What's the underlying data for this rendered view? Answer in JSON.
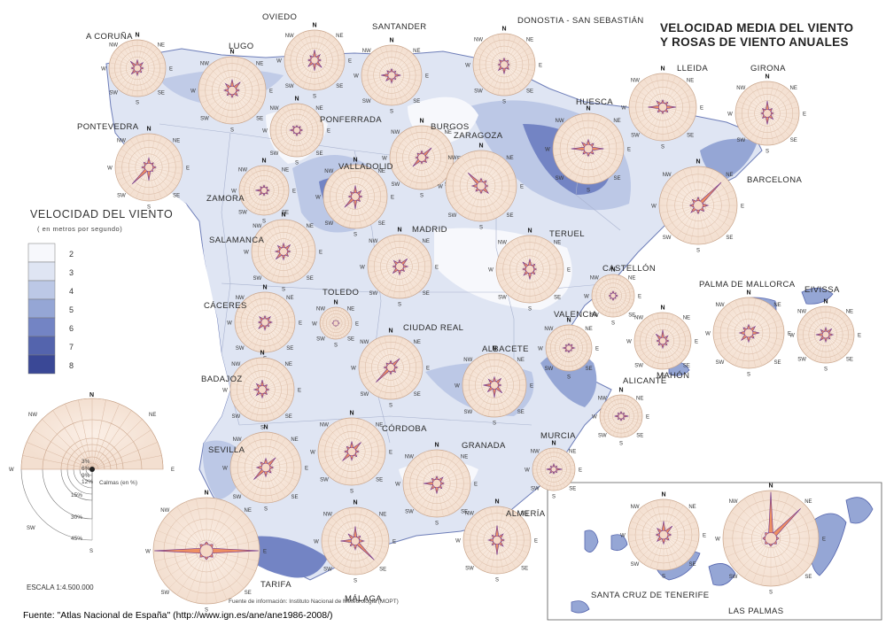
{
  "title_lines": [
    "VELOCIDAD MEDIA DEL VIENTO",
    "Y ROSAS DE VIENTO ANUALES"
  ],
  "legend": {
    "title": "VELOCIDAD DEL VIENTO",
    "subtitle": "( en metros por segundo)",
    "classes": [
      {
        "label": "2",
        "color": "#f7f8fc"
      },
      {
        "label": "3",
        "color": "#dfe5f3"
      },
      {
        "label": "4",
        "color": "#bcc8e6"
      },
      {
        "label": "5",
        "color": "#95a6d5"
      },
      {
        "label": "6",
        "color": "#7384c4"
      },
      {
        "label": "7",
        "color": "#5464ad"
      },
      {
        "label": "8",
        "color": "#3a4896"
      }
    ]
  },
  "key_rose": {
    "directions": {
      "N": "N",
      "NE": "NE",
      "E": "E",
      "SE": "SE",
      "S": "S",
      "SW": "SW",
      "W": "W",
      "NW": "NW"
    },
    "rings": [
      "3%",
      "6%",
      "9%",
      "12%",
      "15%",
      "30%",
      "45%"
    ],
    "calm_label": "Calmas (en %)"
  },
  "scale_label": "ESCALA 1:4.500.000",
  "info_source": "Fuente de información: Instituto Nacional de Meteorología (MOPT)",
  "source_caption": "Fuente: \"Atlas Nacional de España\" (http://www.ign.es/ane/ane1986-2008/)",
  "stations": [
    {
      "name": "A CORUÑA",
      "petals": [
        10,
        9,
        6,
        6,
        8,
        10,
        6,
        12
      ]
    },
    {
      "name": "LUGO",
      "petals": [
        11,
        12,
        6,
        7,
        6,
        6,
        7,
        9
      ]
    },
    {
      "name": "OVIEDO",
      "petals": [
        12,
        8,
        6,
        12,
        12,
        10,
        6,
        6
      ]
    },
    {
      "name": "SANTANDER",
      "petals": [
        6,
        5,
        10,
        5,
        8,
        8,
        12,
        6
      ]
    },
    {
      "name": "DONOSTIA - SAN SEBASTIÁN",
      "petals": [
        6,
        5,
        4,
        6,
        10,
        8,
        5,
        6
      ]
    },
    {
      "name": "LLEIDA",
      "petals": [
        6,
        6,
        14,
        6,
        5,
        6,
        16,
        8
      ]
    },
    {
      "name": "GIRONA",
      "petals": [
        14,
        6,
        5,
        8,
        12,
        6,
        5,
        6
      ]
    },
    {
      "name": "PONTEVEDRA",
      "petals": [
        9,
        5,
        6,
        4,
        14,
        28,
        6,
        6
      ]
    },
    {
      "name": "PONFERRADA",
      "petals": [
        4,
        5,
        6,
        5,
        6,
        4,
        8,
        6
      ]
    },
    {
      "name": "BURGOS",
      "petals": [
        6,
        16,
        6,
        6,
        5,
        14,
        5,
        5
      ]
    },
    {
      "name": "ZARAGOZA",
      "petals": [
        6,
        6,
        5,
        10,
        6,
        6,
        8,
        20
      ]
    },
    {
      "name": "HUESCA",
      "petals": [
        8,
        6,
        16,
        6,
        6,
        6,
        18,
        8
      ]
    },
    {
      "name": "BARCELONA",
      "petals": [
        6,
        34,
        8,
        6,
        6,
        8,
        6,
        6
      ]
    },
    {
      "name": "VALLADOLID",
      "petals": [
        12,
        8,
        6,
        6,
        14,
        18,
        6,
        6
      ]
    },
    {
      "name": "ZAMORA",
      "petals": [
        6,
        5,
        6,
        6,
        6,
        8,
        12,
        6
      ]
    },
    {
      "name": "SALAMANCA",
      "petals": [
        8,
        10,
        6,
        6,
        8,
        12,
        8,
        8
      ]
    },
    {
      "name": "MADRID",
      "petals": [
        6,
        12,
        8,
        6,
        8,
        10,
        6,
        8
      ]
    },
    {
      "name": "TERUEL",
      "petals": [
        10,
        6,
        5,
        6,
        10,
        8,
        6,
        10
      ]
    },
    {
      "name": "CASTELLÓN",
      "petals": [
        6,
        5,
        6,
        4,
        6,
        5,
        5,
        4
      ]
    },
    {
      "name": "TOLEDO",
      "petals": [
        4,
        5,
        6,
        4,
        5,
        4,
        6,
        5
      ]
    },
    {
      "name": "CÁCERES",
      "petals": [
        6,
        8,
        7,
        5,
        8,
        10,
        6,
        8
      ]
    },
    {
      "name": "CIUDAD REAL",
      "petals": [
        6,
        14,
        6,
        6,
        6,
        26,
        6,
        5
      ]
    },
    {
      "name": "VALENCIA",
      "petals": [
        5,
        6,
        8,
        4,
        5,
        6,
        8,
        5
      ]
    },
    {
      "name": "PALMA DE MALLORCA",
      "petals": [
        7,
        8,
        10,
        6,
        8,
        10,
        8,
        6
      ]
    },
    {
      "name": "MAHÓN",
      "petals": [
        14,
        8,
        6,
        6,
        8,
        6,
        6,
        12
      ]
    },
    {
      "name": "EIVISSA",
      "petals": [
        8,
        10,
        8,
        6,
        8,
        10,
        12,
        8
      ]
    },
    {
      "name": "BADAJOZ",
      "petals": [
        10,
        6,
        6,
        6,
        8,
        8,
        8,
        8
      ]
    },
    {
      "name": "ALBACETE",
      "petals": [
        8,
        10,
        6,
        12,
        14,
        10,
        12,
        8
      ]
    },
    {
      "name": "ALICANTE",
      "petals": [
        6,
        6,
        12,
        6,
        6,
        6,
        10,
        6
      ]
    },
    {
      "name": "SEVILLA",
      "petals": [
        8,
        14,
        6,
        6,
        8,
        18,
        8,
        6
      ]
    },
    {
      "name": "CÓRDOBA",
      "petals": [
        10,
        14,
        6,
        6,
        8,
        14,
        6,
        6
      ]
    },
    {
      "name": "GRANADA",
      "petals": [
        6,
        8,
        6,
        6,
        10,
        8,
        14,
        6
      ]
    },
    {
      "name": "MURCIA",
      "petals": [
        8,
        6,
        14,
        6,
        6,
        8,
        12,
        6
      ]
    },
    {
      "name": "TARIFA",
      "petals": [
        4,
        4,
        52,
        4,
        4,
        4,
        46,
        4
      ]
    },
    {
      "name": "MÁLAGA",
      "petals": [
        16,
        6,
        8,
        32,
        8,
        6,
        16,
        10
      ]
    },
    {
      "name": "ALMERÍA",
      "petals": [
        16,
        8,
        6,
        8,
        16,
        6,
        8,
        6
      ]
    },
    {
      "name": "SANTA CRUZ DE TENERIFE",
      "petals": [
        14,
        12,
        6,
        6,
        8,
        8,
        6,
        8
      ]
    },
    {
      "name": "LAS PALMAS",
      "petals": [
        40,
        36,
        4,
        4,
        4,
        4,
        4,
        4
      ]
    }
  ]
}
